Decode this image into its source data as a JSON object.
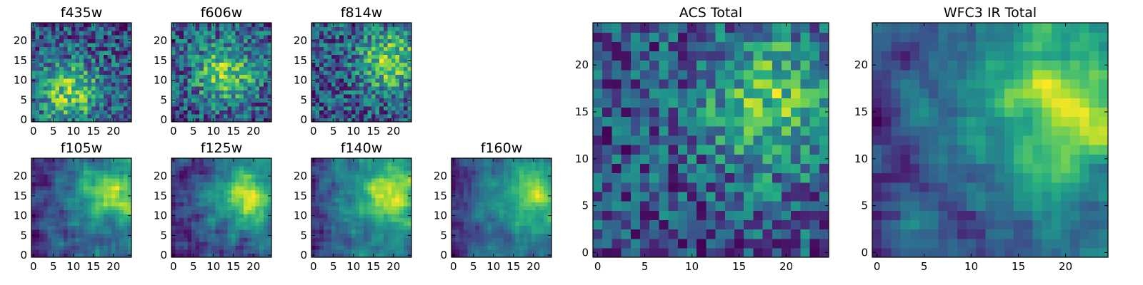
{
  "chart_data": [
    {
      "type": "heatmap",
      "title": "f435w",
      "colormap": "viridis",
      "grid_size": [
        25,
        25
      ],
      "xlim": [
        0,
        24
      ],
      "ylim": [
        0,
        24
      ],
      "xticks": [
        0,
        5,
        10,
        15,
        20
      ],
      "yticks": [
        0,
        5,
        10,
        15,
        20
      ],
      "peak": {
        "x": 9,
        "y": 7
      },
      "texture": "noisy",
      "seed": 3
    },
    {
      "type": "heatmap",
      "title": "f606w",
      "colormap": "viridis",
      "grid_size": [
        25,
        25
      ],
      "xlim": [
        0,
        24
      ],
      "ylim": [
        0,
        24
      ],
      "xticks": [
        0,
        5,
        10,
        15,
        20
      ],
      "yticks": [
        0,
        5,
        10,
        15,
        20
      ],
      "peak": {
        "x": 13,
        "y": 12
      },
      "texture": "noisy",
      "seed": 11
    },
    {
      "type": "heatmap",
      "title": "f814w",
      "colormap": "viridis",
      "grid_size": [
        25,
        25
      ],
      "xlim": [
        0,
        24
      ],
      "ylim": [
        0,
        24
      ],
      "xticks": [
        0,
        5,
        10,
        15,
        20
      ],
      "yticks": [
        0,
        5,
        10,
        15,
        20
      ],
      "peak": {
        "x": 19,
        "y": 15
      },
      "texture": "noisy",
      "seed": 23
    },
    {
      "type": "heatmap",
      "title": "f105w",
      "colormap": "viridis",
      "grid_size": [
        25,
        25
      ],
      "xlim": [
        0,
        24
      ],
      "ylim": [
        0,
        24
      ],
      "xticks": [
        0,
        5,
        10,
        15,
        20
      ],
      "yticks": [
        0,
        5,
        10,
        15,
        20
      ],
      "peak": {
        "x": 20,
        "y": 16
      },
      "texture": "smooth",
      "seed": 31
    },
    {
      "type": "heatmap",
      "title": "f125w",
      "colormap": "viridis",
      "grid_size": [
        25,
        25
      ],
      "xlim": [
        0,
        24
      ],
      "ylim": [
        0,
        24
      ],
      "xticks": [
        0,
        5,
        10,
        15,
        20
      ],
      "yticks": [
        0,
        5,
        10,
        15,
        20
      ],
      "peak": {
        "x": 19,
        "y": 15
      },
      "texture": "smooth",
      "seed": 37
    },
    {
      "type": "heatmap",
      "title": "f140w",
      "colormap": "viridis",
      "grid_size": [
        25,
        25
      ],
      "xlim": [
        0,
        24
      ],
      "ylim": [
        0,
        24
      ],
      "xticks": [
        0,
        5,
        10,
        15,
        20
      ],
      "yticks": [
        0,
        5,
        10,
        15,
        20
      ],
      "peak": {
        "x": 19,
        "y": 15
      },
      "texture": "smooth",
      "seed": 41
    },
    {
      "type": "heatmap",
      "title": "f160w",
      "colormap": "viridis",
      "grid_size": [
        25,
        25
      ],
      "xlim": [
        0,
        24
      ],
      "ylim": [
        0,
        24
      ],
      "xticks": [
        0,
        5,
        10,
        15,
        20
      ],
      "yticks": [
        0,
        5,
        10,
        15,
        20
      ],
      "peak": {
        "x": 20,
        "y": 15
      },
      "texture": "smooth",
      "seed": 47
    },
    {
      "type": "heatmap",
      "title": "ACS Total",
      "colormap": "viridis",
      "grid_size": [
        25,
        25
      ],
      "xlim": [
        0,
        24
      ],
      "ylim": [
        0,
        24
      ],
      "xticks": [
        0,
        5,
        10,
        15,
        20
      ],
      "yticks": [
        0,
        5,
        10,
        15,
        20
      ],
      "peak": {
        "x": 19,
        "y": 16
      },
      "texture": "noisy",
      "seed": 53
    },
    {
      "type": "heatmap",
      "title": "WFC3 IR Total",
      "colormap": "viridis",
      "grid_size": [
        25,
        25
      ],
      "xlim": [
        0,
        24
      ],
      "ylim": [
        0,
        24
      ],
      "xticks": [
        0,
        5,
        10,
        15,
        20
      ],
      "yticks": [
        0,
        5,
        10,
        15,
        20
      ],
      "peak": {
        "x": 20,
        "y": 16
      },
      "texture": "smooth",
      "seed": 59
    }
  ]
}
